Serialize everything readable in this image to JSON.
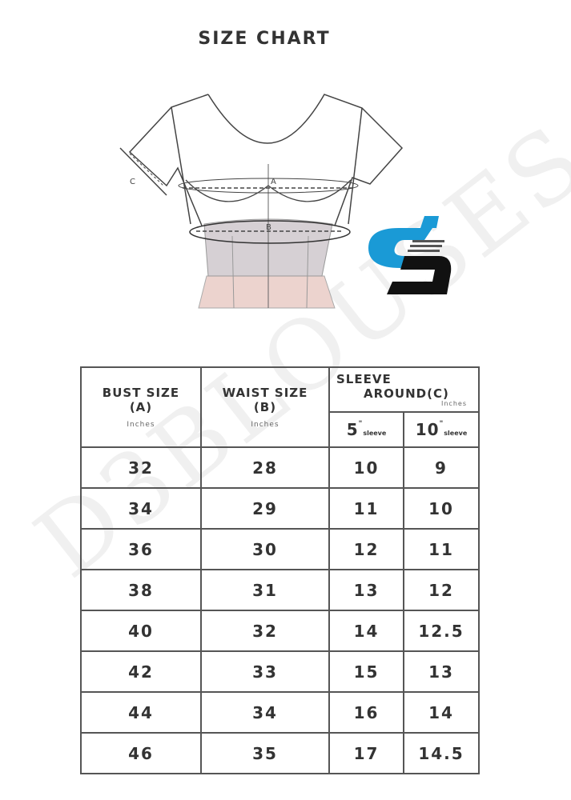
{
  "title": "SIZE CHART",
  "diagram": {
    "label_a": "A",
    "label_b": "B",
    "label_c": "C"
  },
  "logo": {
    "text": "d3",
    "colors": {
      "blue": "#1a9ad6",
      "black": "#111111"
    }
  },
  "watermark": "D3BLOUSES",
  "table": {
    "headers": {
      "bust": {
        "label": "BUST SIZE",
        "code": "(A)",
        "unit": "Inches"
      },
      "waist": {
        "label": "WAIST SIZE",
        "code": "(B)",
        "unit": "Inches"
      },
      "sleeve": {
        "label_1": "SLEEVE",
        "label_2": "AROUND",
        "code": "(C)",
        "unit": "Inches"
      },
      "sleeve5": {
        "num": "5",
        "mark": "\"",
        "word": "sleeve"
      },
      "sleeve10": {
        "num": "10",
        "mark": "\"",
        "word": "sleeve"
      }
    },
    "rows": [
      [
        "32",
        "28",
        "10",
        "9"
      ],
      [
        "34",
        "29",
        "11",
        "10"
      ],
      [
        "36",
        "30",
        "12",
        "11"
      ],
      [
        "38",
        "31",
        "13",
        "12"
      ],
      [
        "40",
        "32",
        "14",
        "12.5"
      ],
      [
        "42",
        "33",
        "15",
        "13"
      ],
      [
        "44",
        "34",
        "16",
        "14"
      ],
      [
        "46",
        "35",
        "17",
        "14.5"
      ]
    ]
  }
}
